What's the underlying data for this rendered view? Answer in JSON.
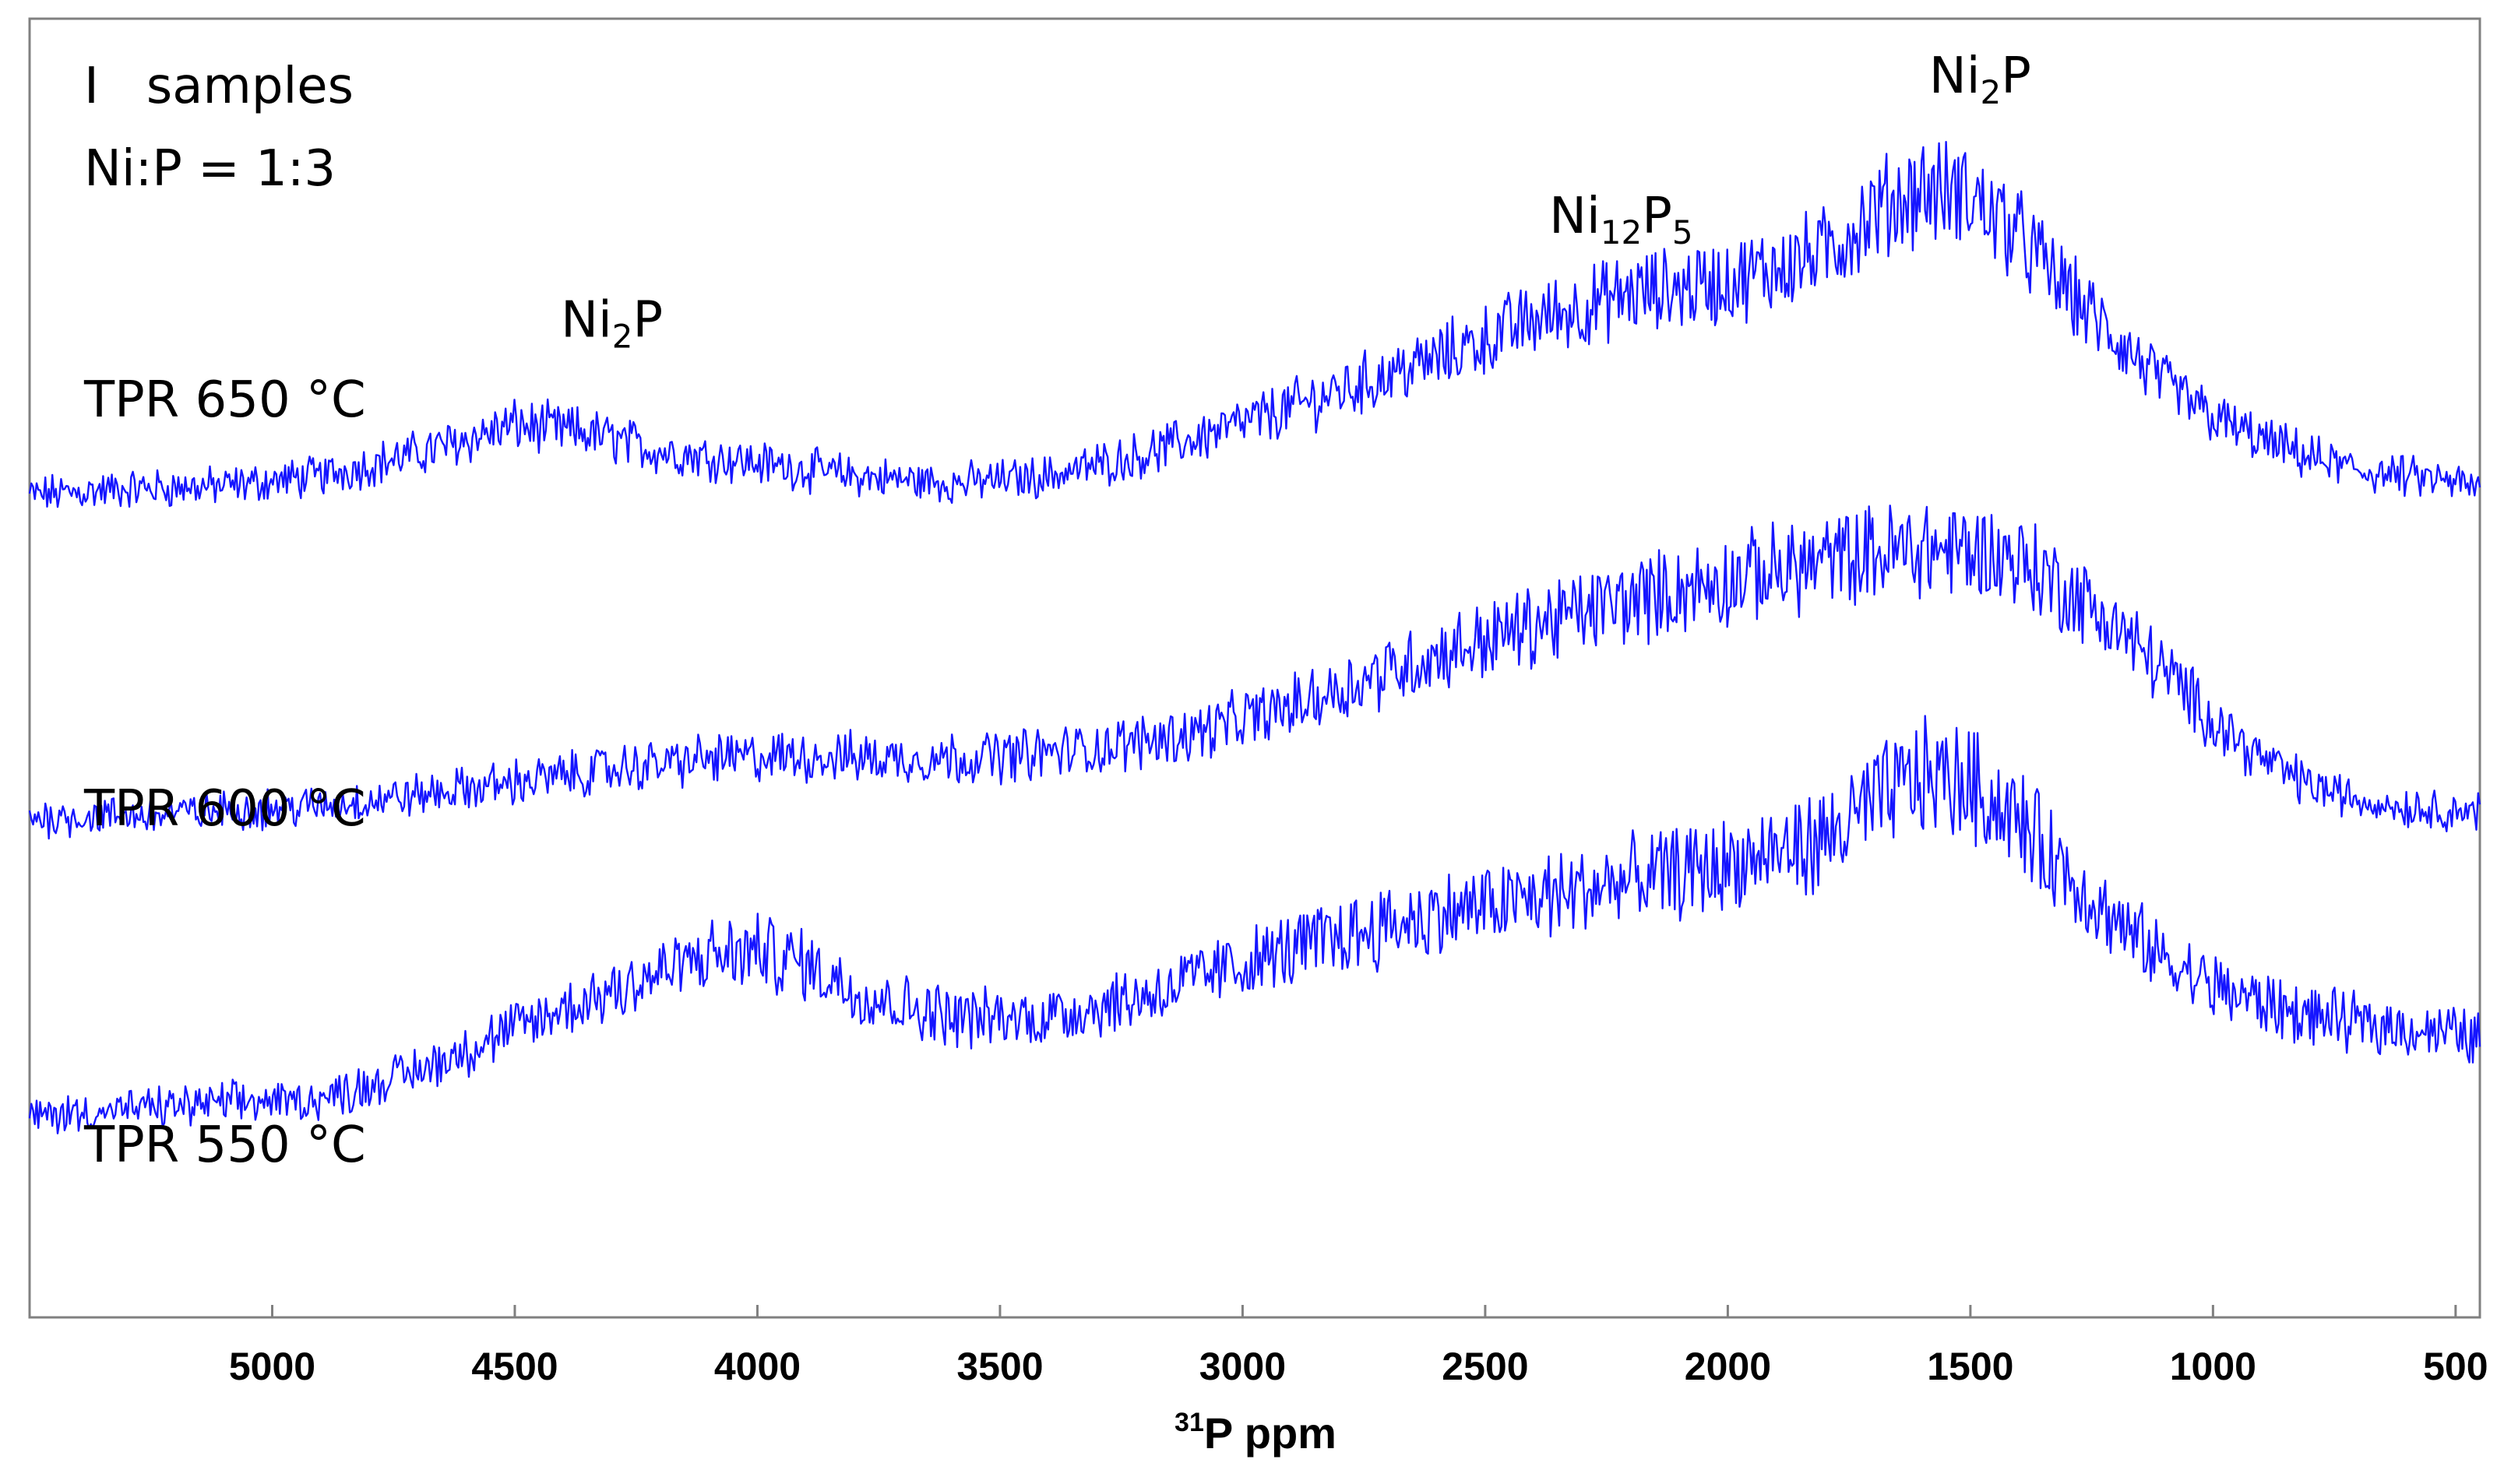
{
  "chart_data": {
    "type": "line",
    "title": "",
    "xlabel_sup": "31",
    "xlabel_main": "P ppm",
    "xlim": [
      5500,
      450
    ],
    "x_reversed": true,
    "ylim": [
      0,
      1
    ],
    "grid": false,
    "line_color": "#1515ff",
    "xticks": [
      {
        "value": 5000,
        "label": "5000"
      },
      {
        "value": 4500,
        "label": "4500"
      },
      {
        "value": 4000,
        "label": "4000"
      },
      {
        "value": 3500,
        "label": "3500"
      },
      {
        "value": 3000,
        "label": "3000"
      },
      {
        "value": 2500,
        "label": "2500"
      },
      {
        "value": 2000,
        "label": "2000"
      },
      {
        "value": 1500,
        "label": "1500"
      },
      {
        "value": 1000,
        "label": "1000"
      },
      {
        "value": 500,
        "label": "500"
      }
    ],
    "header_lines": [
      "I   samples",
      "Ni:P = 1:3"
    ],
    "series": [
      {
        "label": "TPR 650 °C",
        "x": [
          5500,
          5300,
          5100,
          4900,
          4700,
          4500,
          4350,
          4200,
          4000,
          3800,
          3600,
          3400,
          3200,
          3000,
          2800,
          2600,
          2400,
          2200,
          2000,
          1800,
          1700,
          1600,
          1500,
          1400,
          1300,
          1200,
          1100,
          1000,
          900,
          800,
          700,
          600,
          500,
          450
        ],
        "y": [
          0.633,
          0.638,
          0.64,
          0.648,
          0.665,
          0.687,
          0.681,
          0.667,
          0.658,
          0.648,
          0.642,
          0.648,
          0.665,
          0.688,
          0.713,
          0.738,
          0.768,
          0.788,
          0.797,
          0.82,
          0.851,
          0.869,
          0.863,
          0.832,
          0.79,
          0.753,
          0.718,
          0.693,
          0.675,
          0.662,
          0.652,
          0.647,
          0.643,
          0.637
        ]
      },
      {
        "label": "TPR 600 °C",
        "x": [
          5500,
          5300,
          5100,
          4900,
          4700,
          4500,
          4300,
          4100,
          3900,
          3700,
          3500,
          3300,
          3100,
          2900,
          2700,
          2500,
          2300,
          2100,
          1900,
          1700,
          1600,
          1500,
          1400,
          1300,
          1200,
          1100,
          1000,
          900,
          800,
          700,
          600,
          500,
          450
        ],
        "y": [
          0.385,
          0.386,
          0.39,
          0.394,
          0.402,
          0.412,
          0.422,
          0.43,
          0.432,
          0.43,
          0.432,
          0.438,
          0.45,
          0.47,
          0.498,
          0.522,
          0.543,
          0.56,
          0.575,
          0.588,
          0.592,
          0.59,
          0.583,
          0.56,
          0.532,
          0.497,
          0.46,
          0.43,
          0.41,
          0.398,
          0.393,
          0.39,
          0.39
        ]
      },
      {
        "label": "TPR 550 °C",
        "x": [
          5500,
          5300,
          5100,
          4900,
          4700,
          4500,
          4300,
          4100,
          4000,
          3900,
          3800,
          3700,
          3600,
          3500,
          3400,
          3200,
          3000,
          2800,
          2600,
          2400,
          2200,
          2000,
          1800,
          1700,
          1600,
          1500,
          1400,
          1300,
          1200,
          1100,
          1000,
          900,
          800,
          700,
          600,
          500,
          450
        ],
        "y": [
          0.155,
          0.16,
          0.165,
          0.168,
          0.19,
          0.222,
          0.252,
          0.278,
          0.282,
          0.272,
          0.252,
          0.24,
          0.232,
          0.23,
          0.232,
          0.248,
          0.272,
          0.293,
          0.31,
          0.322,
          0.336,
          0.348,
          0.367,
          0.395,
          0.417,
          0.411,
          0.382,
          0.342,
          0.303,
          0.275,
          0.255,
          0.242,
          0.232,
          0.226,
          0.223,
          0.218,
          0.216
        ]
      }
    ],
    "annotations": [
      {
        "base": "Ni",
        "sub1": "2",
        "mid": "P",
        "sub2": "",
        "x": 4300,
        "y": 0.755
      },
      {
        "base": "Ni",
        "sub1": "12",
        "mid": "P",
        "sub2": "5",
        "x": 2220,
        "y": 0.835
      },
      {
        "base": "Ni",
        "sub1": "2",
        "mid": "P",
        "sub2": "",
        "x": 1480,
        "y": 0.943
      }
    ]
  }
}
